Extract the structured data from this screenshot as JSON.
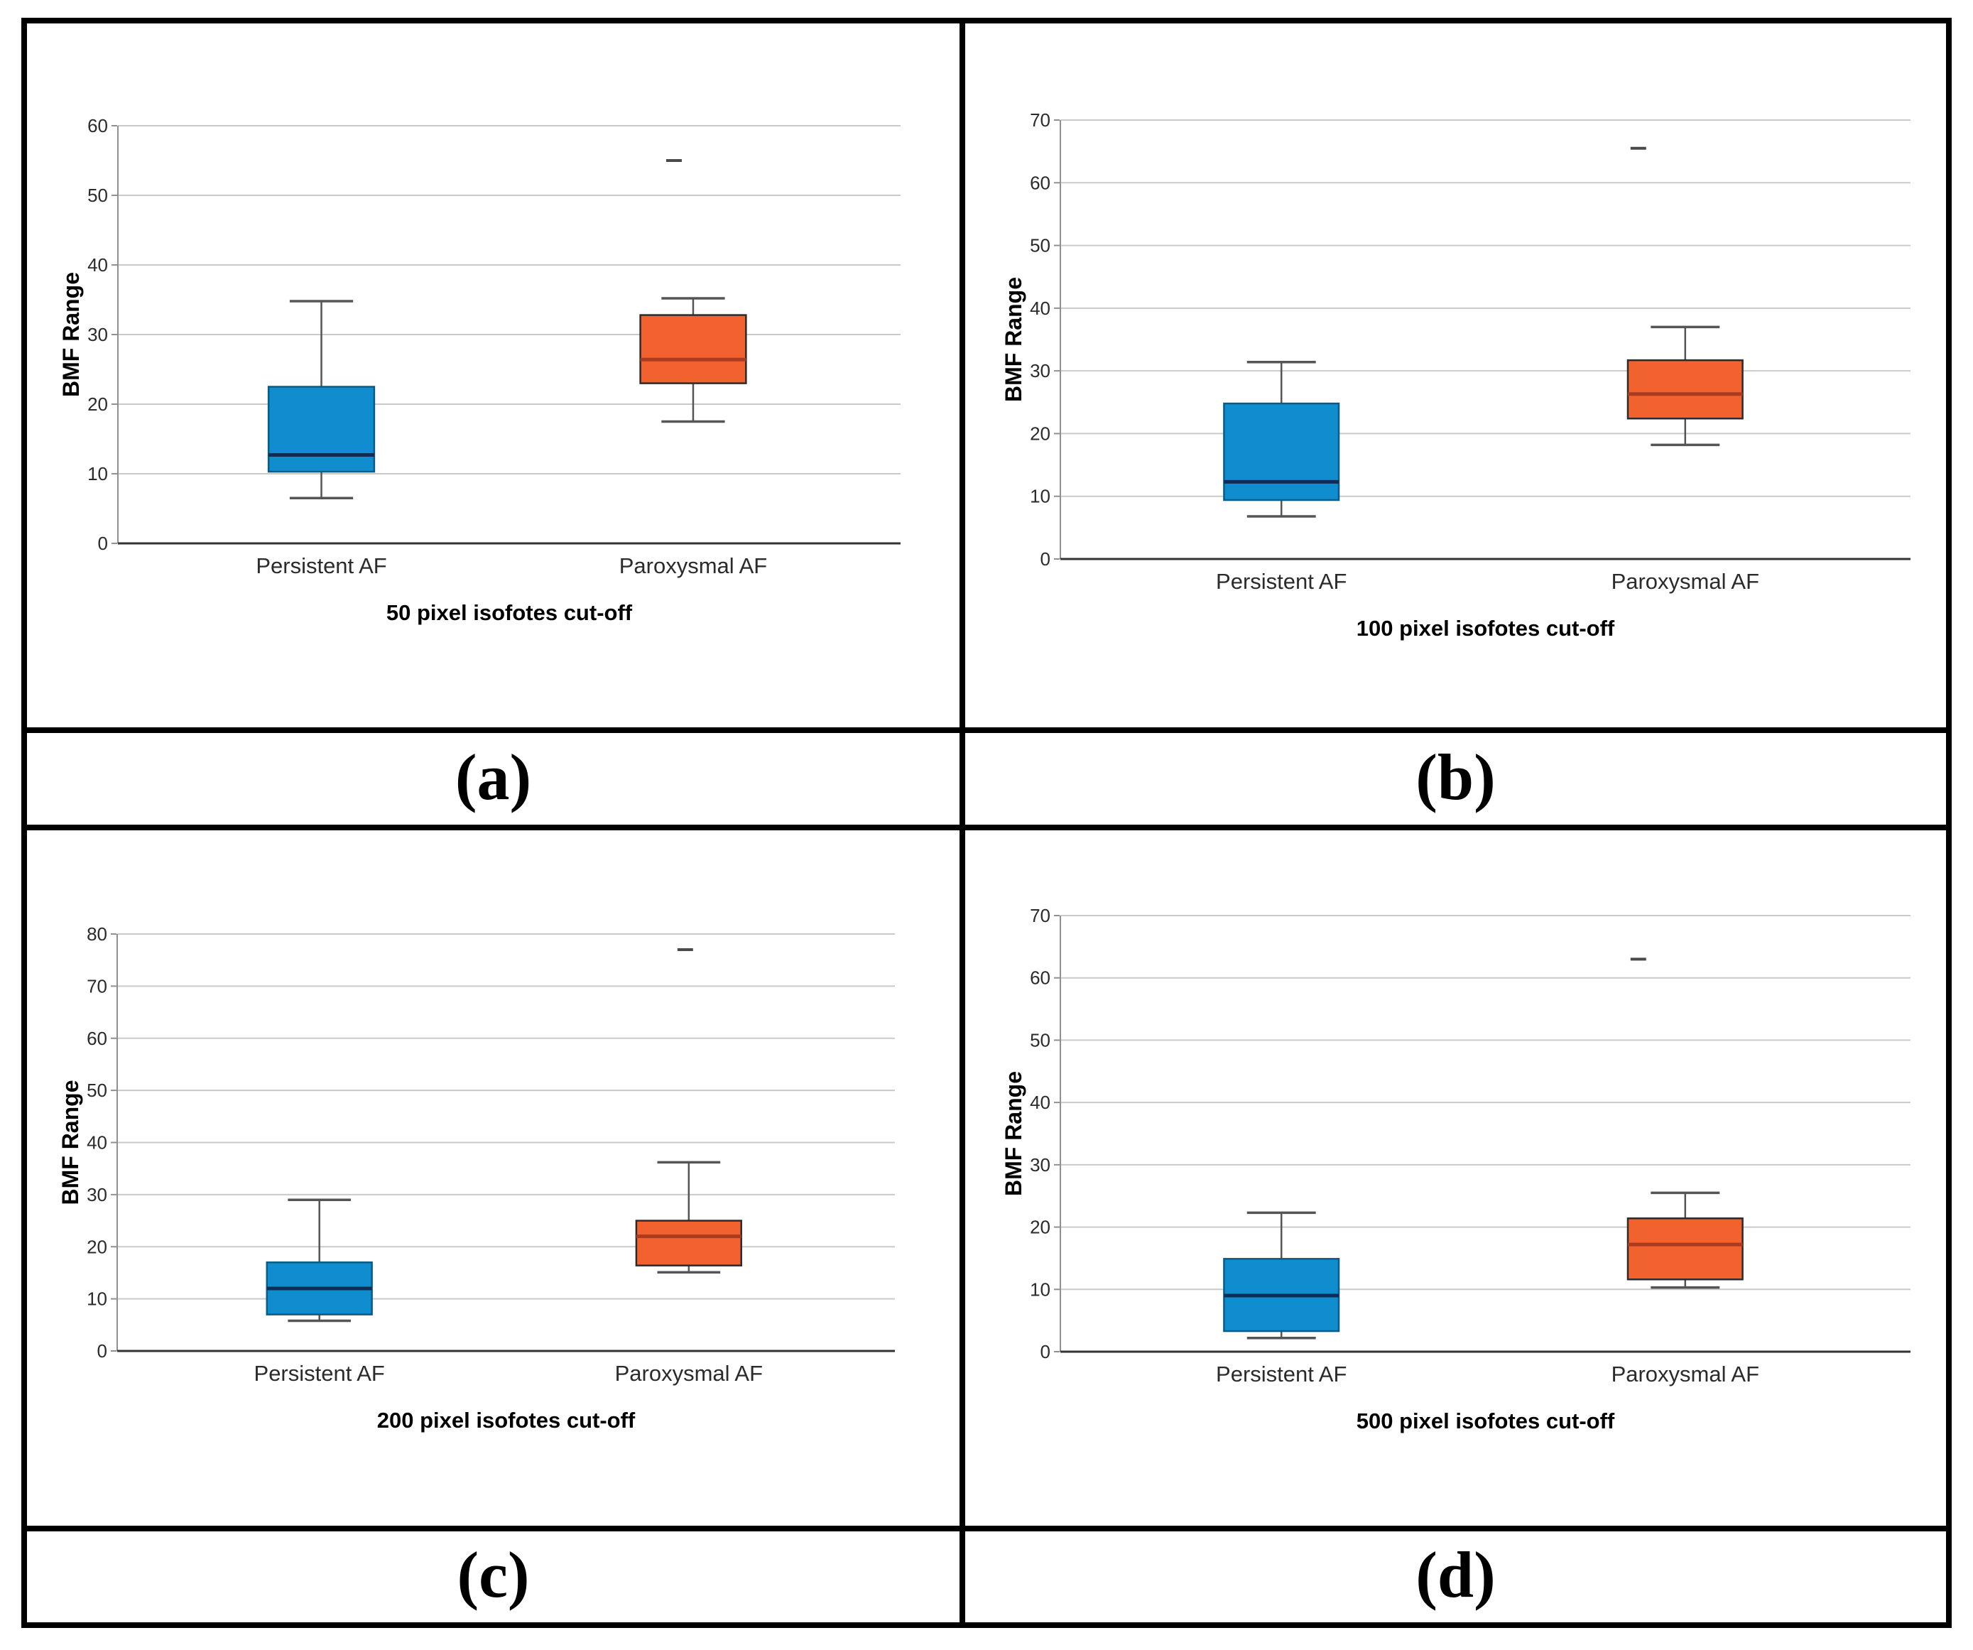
{
  "figure": {
    "captions": [
      {
        "label": "(a)"
      },
      {
        "label": "(b)"
      },
      {
        "label": "(c)"
      },
      {
        "label": "(d)"
      }
    ]
  },
  "colors": {
    "persistent_fill": "#0f8dce",
    "persistent_stroke": "#0a5c84",
    "persistent_median": "#0f2d52",
    "paroxysmal_fill": "#f2622e",
    "paroxysmal_stroke": "#2b2b2b",
    "paroxysmal_median": "#ab3a1e",
    "whisker": "#555555",
    "gridline": "#cacaca",
    "y_axis": "#909090",
    "x_axis": "#333333",
    "tick_text": "#2b2b2b"
  },
  "chart_data": [
    {
      "type": "box",
      "panel": "a",
      "xlabel": "50 pixel isofotes cut-off",
      "ylabel": "BMF Range",
      "ylim": [
        0,
        60
      ],
      "ytick_step": 10,
      "grid": true,
      "categories": [
        "Persistent AF",
        "Paroxysmal AF"
      ],
      "series": [
        {
          "name": "Persistent AF",
          "fill": "#0f8dce",
          "stroke": "#0a5c84",
          "median_color": "#0f2d52",
          "whisker_low": 6.5,
          "q1": 10.3,
          "median": 12.7,
          "q3": 22.5,
          "whisker_high": 34.8,
          "outliers": []
        },
        {
          "name": "Paroxysmal AF",
          "fill": "#f2622e",
          "stroke": "#2b2b2b",
          "median_color": "#ab3a1e",
          "whisker_low": 17.5,
          "q1": 23.0,
          "median": 26.4,
          "q3": 32.8,
          "whisker_high": 35.2,
          "outliers": [
            55
          ]
        }
      ]
    },
    {
      "type": "box",
      "panel": "b",
      "xlabel": "100 pixel isofotes cut-off",
      "ylabel": "BMF Range",
      "ylim": [
        0,
        70
      ],
      "ytick_step": 10,
      "grid": true,
      "categories": [
        "Persistent AF",
        "Paroxysmal AF"
      ],
      "series": [
        {
          "name": "Persistent AF",
          "fill": "#0f8dce",
          "stroke": "#0a5c84",
          "median_color": "#0f2d52",
          "whisker_low": 6.8,
          "q1": 9.4,
          "median": 12.3,
          "q3": 24.8,
          "whisker_high": 31.4,
          "outliers": []
        },
        {
          "name": "Paroxysmal AF",
          "fill": "#f2622e",
          "stroke": "#2b2b2b",
          "median_color": "#ab3a1e",
          "whisker_low": 18.2,
          "q1": 22.4,
          "median": 26.3,
          "q3": 31.7,
          "whisker_high": 37.0,
          "outliers": [
            65.5
          ]
        }
      ]
    },
    {
      "type": "box",
      "panel": "c",
      "xlabel": "200 pixel isofotes cut-off",
      "ylabel": "BMF Range",
      "ylim": [
        0,
        80
      ],
      "ytick_step": 10,
      "grid": true,
      "categories": [
        "Persistent AF",
        "Paroxysmal AF"
      ],
      "series": [
        {
          "name": "Persistent AF",
          "fill": "#0f8dce",
          "stroke": "#0a5c84",
          "median_color": "#0f2d52",
          "whisker_low": 5.8,
          "q1": 7.0,
          "median": 12.0,
          "q3": 17.0,
          "whisker_high": 29.0,
          "outliers": []
        },
        {
          "name": "Paroxysmal AF",
          "fill": "#f2622e",
          "stroke": "#2b2b2b",
          "median_color": "#ab3a1e",
          "whisker_low": 15.1,
          "q1": 16.4,
          "median": 22.0,
          "q3": 25.0,
          "whisker_high": 36.2,
          "outliers": [
            77
          ]
        }
      ]
    },
    {
      "type": "box",
      "panel": "d",
      "xlabel": "500 pixel isofotes cut-off",
      "ylabel": "BMF Range",
      "ylim": [
        0,
        70
      ],
      "ytick_step": 10,
      "grid": true,
      "categories": [
        "Persistent AF",
        "Paroxysmal AF"
      ],
      "series": [
        {
          "name": "Persistent AF",
          "fill": "#0f8dce",
          "stroke": "#0a5c84",
          "median_color": "#0f2d52",
          "whisker_low": 2.2,
          "q1": 3.3,
          "median": 9.0,
          "q3": 14.9,
          "whisker_high": 22.3,
          "outliers": []
        },
        {
          "name": "Paroxysmal AF",
          "fill": "#f2622e",
          "stroke": "#2b2b2b",
          "median_color": "#ab3a1e",
          "whisker_low": 10.3,
          "q1": 11.6,
          "median": 17.2,
          "q3": 21.4,
          "whisker_high": 25.5,
          "outliers": [
            63
          ]
        }
      ]
    }
  ]
}
